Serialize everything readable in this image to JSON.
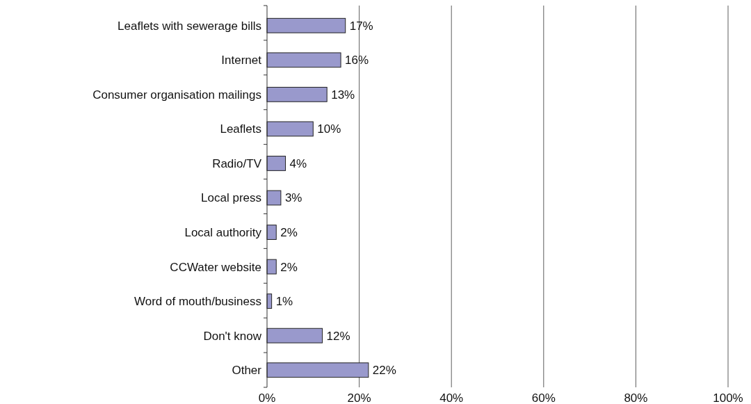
{
  "chart_data": {
    "type": "bar",
    "orientation": "horizontal",
    "categories": [
      "Leaflets with sewerage bills",
      "Internet",
      "Consumer organisation mailings",
      "Leaflets",
      "Radio/TV",
      "Local press",
      "Local authority",
      "CCWater website",
      "Word of mouth/business",
      "Don't know",
      "Other"
    ],
    "values": [
      17,
      16,
      13,
      10,
      4,
      3,
      2,
      2,
      1,
      12,
      22
    ],
    "value_labels": [
      "17%",
      "16%",
      "13%",
      "10%",
      "4%",
      "3%",
      "2%",
      "2%",
      "1%",
      "12%",
      "22%"
    ],
    "color": "#9999cc",
    "xlim": [
      0,
      100
    ],
    "xticks": [
      {
        "value": 0,
        "label": "0%"
      },
      {
        "value": 20,
        "label": "20%"
      },
      {
        "value": 40,
        "label": "40%"
      },
      {
        "value": 60,
        "label": "60%"
      },
      {
        "value": 80,
        "label": "80%"
      },
      {
        "value": 100,
        "label": "100%"
      }
    ],
    "grid": "x"
  }
}
